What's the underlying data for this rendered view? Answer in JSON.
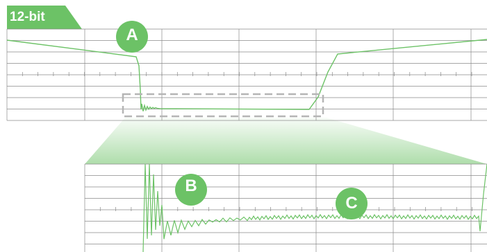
{
  "badge": {
    "label": "12-bit"
  },
  "markers": [
    {
      "id": "overview-marker",
      "label": "A"
    },
    {
      "id": "ringing-marker",
      "label": "B"
    },
    {
      "id": "noise-marker",
      "label": "C"
    }
  ],
  "colors": {
    "accent": "#6cc266",
    "trace": "#6cc266",
    "grid": "#8a8a8a",
    "zoom-box": "#b5b5b5"
  }
}
